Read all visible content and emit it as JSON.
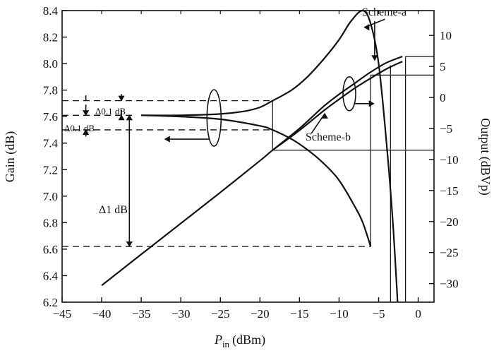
{
  "chart_data": {
    "type": "line",
    "x": {
      "label_main": "P",
      "label_sub": "in",
      "label_unit": "(dBm)",
      "range": [
        -45,
        2
      ],
      "ticks": [
        -45,
        -40,
        -35,
        -30,
        -25,
        -20,
        -15,
        -10,
        -5,
        0
      ]
    },
    "y_left": {
      "label": "Gain (dB)",
      "range": [
        6.2,
        8.4
      ],
      "ticks": [
        6.2,
        6.4,
        6.6,
        6.8,
        7.0,
        7.2,
        7.4,
        7.6,
        7.8,
        8.0,
        8.2,
        8.4
      ],
      "tick_labels": [
        "6.2",
        "6.4",
        "6.6",
        "6.8",
        "7.0",
        "7.2",
        "7.4",
        "7.6",
        "7.8",
        "8.0",
        "8.2",
        "8.4"
      ]
    },
    "y_right": {
      "label": "Output (dBVp)",
      "range": [
        -33,
        14
      ],
      "ticks": [
        10,
        5,
        0,
        -5,
        -10,
        -15,
        -20,
        -25,
        -30
      ],
      "tick_labels": [
        "10",
        "5",
        "0",
        "−5",
        "−10",
        "−15",
        "−20",
        "−25",
        "−30"
      ]
    },
    "x_tick_labels": [
      "−45",
      "−40",
      "−35",
      "−30",
      "−25",
      "−20",
      "−15",
      "−10",
      "−5",
      "0"
    ],
    "series": [
      {
        "axis": "left",
        "x": [
          -35,
          -30,
          -25,
          -22,
          -20,
          -18.4,
          -16,
          -14,
          -12,
          -10,
          -8.5,
          -7,
          -6,
          -5,
          -4,
          -3.2,
          -2.6
        ],
        "y": [
          7.61,
          7.61,
          7.62,
          7.64,
          7.67,
          7.72,
          7.8,
          7.9,
          8.03,
          8.18,
          8.32,
          8.4,
          8.3,
          8.0,
          7.4,
          6.8,
          6.2
        ]
      },
      {
        "axis": "left",
        "x": [
          -35,
          -30,
          -25,
          -20,
          -18.4,
          -16,
          -14,
          -12,
          -10,
          -8,
          -7,
          -6
        ],
        "y": [
          7.61,
          7.6,
          7.58,
          7.53,
          7.5,
          7.43,
          7.35,
          7.25,
          7.12,
          6.92,
          6.8,
          6.62
        ]
      },
      {
        "axis": "right",
        "x": [
          -40,
          -35,
          -30,
          -25,
          -20,
          -18.4,
          -15,
          -12,
          -10,
          -8,
          -6,
          -4,
          -2
        ],
        "y": [
          -30.3,
          -25.3,
          -20.3,
          -15.3,
          -10.2,
          -8.5,
          -5.0,
          -1.5,
          0.5,
          2.3,
          4.1,
          5.6,
          6.6
        ]
      },
      {
        "axis": "right",
        "x": [
          -18.4,
          -15,
          -12,
          -10,
          -8,
          -6,
          -4,
          -2
        ],
        "y": [
          -8.5,
          -5.3,
          -2.2,
          -0.3,
          1.5,
          3.1,
          4.6,
          5.8
        ]
      }
    ],
    "annotations": {
      "scheme_a": "Scheme-a",
      "scheme_b": "Scheme-b",
      "delta_01_top": "Δ0.1 dB",
      "delta_01_left": "Δ0.1 dB",
      "delta_1": "Δ1 dB"
    },
    "reference_lines": {
      "gain_dashed": [
        7.72,
        7.61,
        7.5,
        6.62
      ],
      "output_horizontal": [
        6.6,
        3.6,
        -8.5
      ],
      "vertical_x": [
        -18.4,
        -6,
        -3.5,
        -1.6
      ]
    }
  }
}
